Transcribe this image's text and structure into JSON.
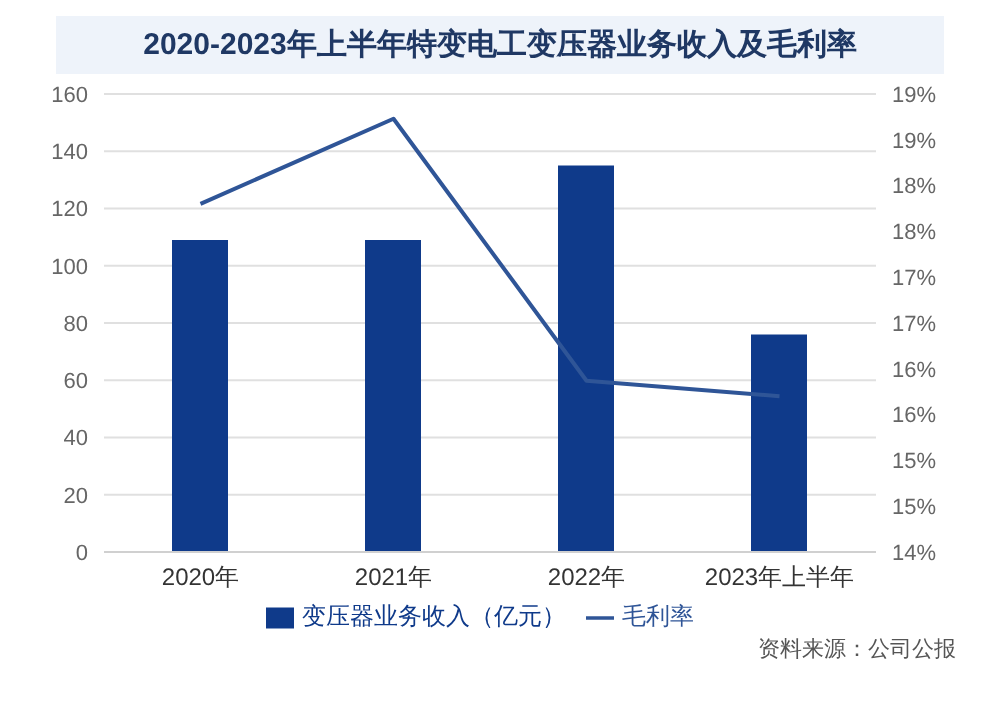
{
  "chart_data": {
    "type": "bar",
    "title": "2020-2023年上半年特变电工变压器业务收入及毛利率",
    "categories": [
      "2020年",
      "2021年",
      "2022年",
      "2023年上半年"
    ],
    "series": [
      {
        "name": "变压器业务收入（亿元）",
        "color": "#0f3a8a",
        "values": [
          109,
          109,
          135,
          76
        ]
      },
      {
        "name": "毛利率",
        "type": "line",
        "axis": "y2",
        "color": "#2f5597",
        "values": [
          17.8,
          18.73,
          15.87,
          15.7
        ]
      }
    ],
    "ylim": [
      0,
      160
    ],
    "yticks": [
      0,
      20,
      40,
      60,
      80,
      100,
      120,
      140,
      160
    ],
    "y2lim": [
      14,
      19
    ],
    "y2ticks": [
      {
        "value": 14,
        "label": "14%"
      },
      {
        "value": 14.5,
        "label": "15%"
      },
      {
        "value": 15,
        "label": "15%"
      },
      {
        "value": 15.5,
        "label": "16%"
      },
      {
        "value": 16,
        "label": "16%"
      },
      {
        "value": 16.5,
        "label": "17%"
      },
      {
        "value": 17,
        "label": "17%"
      },
      {
        "value": 17.5,
        "label": "18%"
      },
      {
        "value": 18,
        "label": "18%"
      },
      {
        "value": 18.5,
        "label": "19%"
      },
      {
        "value": 19,
        "label": "19%"
      }
    ],
    "grid": "y",
    "legend": "bottom",
    "marker": "none",
    "line_style": "solid",
    "annotations": [
      "资料来源：公司公报"
    ]
  }
}
